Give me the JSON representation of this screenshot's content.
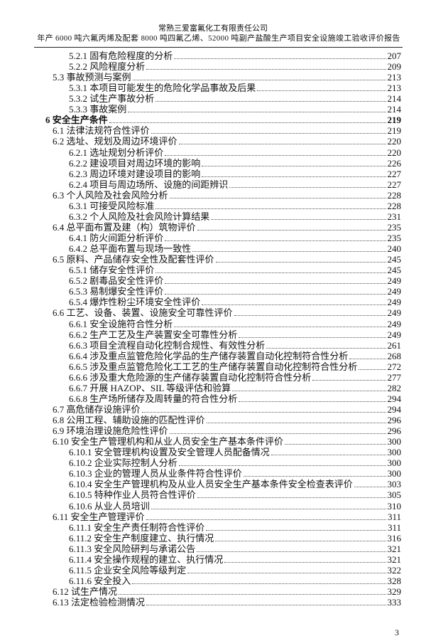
{
  "header": {
    "company": "常熟三爱富氟化工有限责任公司",
    "report_title": "年产 6000 吨六氟丙烯及配套 8000 吨四氟乙烯、52000 吨副产盐酸生产项目安全设施竣工验收评价报告"
  },
  "toc": [
    {
      "level": 3,
      "label": "5.2.1 固有危险程度的分析",
      "page": "207"
    },
    {
      "level": 3,
      "label": "5.2.2 风险程度分析",
      "page": "209"
    },
    {
      "level": 2,
      "label": "5.3 事故预测与案例",
      "page": "213"
    },
    {
      "level": 3,
      "label": "5.3.1 本项目可能发生的危险化学品事故及后果",
      "page": "213"
    },
    {
      "level": 3,
      "label": "5.3.2 试生产事故分析",
      "page": "214"
    },
    {
      "level": 3,
      "label": "5.3.3 事故案例",
      "page": "214"
    },
    {
      "level": 1,
      "label": "6  安全生产条件",
      "page": "219"
    },
    {
      "level": 2,
      "label": "6.1 法律法规符合性评价",
      "page": "219"
    },
    {
      "level": 2,
      "label": "6.2 选址、规划及周边环境评价",
      "page": "220"
    },
    {
      "level": 3,
      "label": "6.2.1 选址规划分析评价",
      "page": "220"
    },
    {
      "level": 3,
      "label": "6.2.2 建设项目对周边环境的影响",
      "page": "226"
    },
    {
      "level": 3,
      "label": "6.2.3 周边环境对建设项目的影响",
      "page": "227"
    },
    {
      "level": 3,
      "label": "6.2.4 项目与周边场所、设施的间距辨识",
      "page": "227"
    },
    {
      "level": 2,
      "label": "6.3 个人风险及社会风险分析",
      "page": "228"
    },
    {
      "level": 3,
      "label": "6.3.1 可接受风险标准",
      "page": "228"
    },
    {
      "level": 3,
      "label": "6.3.2 个人风险及社会风险计算结果",
      "page": "231"
    },
    {
      "level": 2,
      "label": "6.4 总平面布置及建（构）筑物评价",
      "page": "235"
    },
    {
      "level": 3,
      "label": "6.4.1 防火间距分析评价",
      "page": "235"
    },
    {
      "level": 3,
      "label": "6.4.2 总平面布置与现场一致性",
      "page": "240"
    },
    {
      "level": 2,
      "label": "6.5 原料、产品储存安全性及配套性评价",
      "page": "245"
    },
    {
      "level": 3,
      "label": "6.5.1 储存安全性评价",
      "page": "245"
    },
    {
      "level": 3,
      "label": "6.5.2 剧毒品安全性评价",
      "page": "249"
    },
    {
      "level": 3,
      "label": "6.5.3 易制爆安全性评价",
      "page": "249"
    },
    {
      "level": 3,
      "label": "6.5.4 爆炸性粉尘环境安全性评价",
      "page": "249"
    },
    {
      "level": 2,
      "label": "6.6 工艺、设备、装置、设施安全可靠性评价",
      "page": "249"
    },
    {
      "level": 3,
      "label": "6.6.1 安全设施符合性分析",
      "page": "249"
    },
    {
      "level": 3,
      "label": "6.6.2 生产工艺及生产装置安全可靠性分析",
      "page": "249"
    },
    {
      "level": 3,
      "label": "6.6.3 项目全流程自动化控制合规性、有效性分析",
      "page": "261"
    },
    {
      "level": 3,
      "label": "6.6.4 涉及重点监管危险化学品的生产储存装置自动化控制符合性分析",
      "page": "268"
    },
    {
      "level": 3,
      "label": "6.6.5 涉及重点监管危险化工工艺的生产储存装置自动化控制符合性分析",
      "page": "272"
    },
    {
      "level": 3,
      "label": "6.6.6 涉及重大危险源的生产储存装置自动化控制符合性分析",
      "page": "277"
    },
    {
      "level": 3,
      "label": "6.6.7 开展 HAZOP、SIL 等级评估和验算",
      "page": "282"
    },
    {
      "level": 3,
      "label": "6.6.8 生产场所储存及周转量的符合性分析",
      "page": "294"
    },
    {
      "level": 2,
      "label": "6.7 高危储存设施评价",
      "page": "294"
    },
    {
      "level": 2,
      "label": "6.8 公用工程、辅助设施的匹配性评价",
      "page": "296"
    },
    {
      "level": 2,
      "label": "6.9 环境治理设施危险性评价",
      "page": "296"
    },
    {
      "level": 2,
      "label": "6.10 安全生产管理机构和从业人员安全生产基本条件评价",
      "page": "300"
    },
    {
      "level": 3,
      "label": "6.10.1 安全管理机构设置及安全管理人员配备情况",
      "page": "300"
    },
    {
      "level": 3,
      "label": "6.10.2 企业实际控制人分析",
      "page": "300"
    },
    {
      "level": 3,
      "label": "6.10.3 企业的管理人员从业条件符合性评价",
      "page": "300"
    },
    {
      "level": 3,
      "label": "6.10.4 安全生产管理机构及从业人员安全生产基本条件安全检查表评价",
      "page": "303"
    },
    {
      "level": 3,
      "label": "6.10.5 特种作业人员符合性评价",
      "page": "305"
    },
    {
      "level": 3,
      "label": "6.10.6 从业人员培训",
      "page": "310"
    },
    {
      "level": 2,
      "label": "6.11 安全生产管理评价",
      "page": "311"
    },
    {
      "level": 3,
      "label": "6.11.1 安全生产责任制符合性评价",
      "page": "311"
    },
    {
      "level": 3,
      "label": "6.11.2 安全生产制度建立、执行情况",
      "page": "316"
    },
    {
      "level": 3,
      "label": "6.11.3 安全风险研判与承诺公告",
      "page": "321"
    },
    {
      "level": 3,
      "label": "6.11.4 安全操作规程的建立、执行情况",
      "page": "321"
    },
    {
      "level": 3,
      "label": "6.11.5 企业安全风险等级判定",
      "page": "322"
    },
    {
      "level": 3,
      "label": "6.11.6 安全投入",
      "page": "328"
    },
    {
      "level": 2,
      "label": "6.12 试生产情况",
      "page": "329"
    },
    {
      "level": 2,
      "label": "6.13 法定检验检测情况",
      "page": "333"
    }
  ],
  "footer": {
    "page_number": "3"
  }
}
